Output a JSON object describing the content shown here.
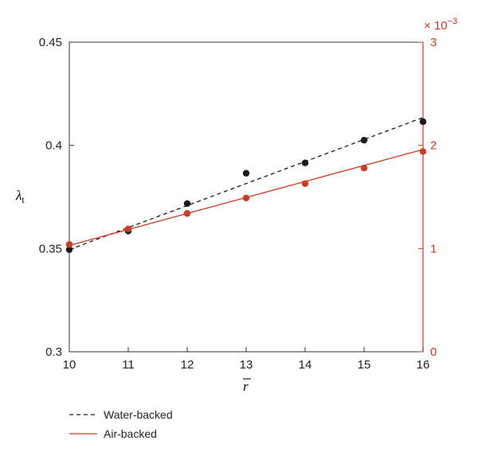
{
  "chart_data": {
    "type": "line",
    "xlabel": "r̅",
    "ylabel": "λt",
    "ylabel_main": "λ",
    "ylabel_sub": "t",
    "xlim": [
      10,
      16
    ],
    "x_ticks": [
      10,
      11,
      12,
      13,
      14,
      15,
      16
    ],
    "x_tick_labels": [
      "10",
      "11",
      "12",
      "13",
      "14",
      "15",
      "16"
    ],
    "ylim_left": [
      0.3,
      0.45
    ],
    "y_left_ticks": [
      0.3,
      0.35,
      0.4,
      0.45
    ],
    "y_left_tick_labels": [
      "0.3",
      "0.35",
      "0.4",
      "0.45"
    ],
    "ylim_right": [
      0,
      3
    ],
    "y_right_ticks": [
      0,
      1,
      2,
      3
    ],
    "y_right_tick_labels": [
      "0",
      "1",
      "2",
      "3"
    ],
    "y_right_multiplier_base": "× 10",
    "y_right_multiplier_exp": "−3",
    "grid": false,
    "legend_position": "bottom-left, outside plot",
    "series": [
      {
        "name": "Water-backed",
        "axis": "left",
        "color": "#1a1a1a",
        "line_style": "dashed",
        "marker": "filled-circle",
        "x": [
          10,
          11,
          12,
          13,
          14,
          15,
          16
        ],
        "y": [
          0.3495,
          0.3585,
          0.3718,
          0.3865,
          0.3915,
          0.4025,
          0.4115
        ],
        "fit": [
          [
            10,
            0.3495
          ],
          [
            16,
            0.4135
          ]
        ]
      },
      {
        "name": "Air-backed",
        "axis": "right",
        "color": "#d03a1f",
        "line_style": "solid",
        "marker": "filled-circle",
        "x": [
          10,
          11,
          12,
          13,
          14,
          15,
          16
        ],
        "y": [
          1.04,
          1.19,
          1.34,
          1.49,
          1.63,
          1.78,
          1.94
        ],
        "fit": [
          [
            10,
            1.03
          ],
          [
            16,
            1.96
          ]
        ]
      }
    ]
  }
}
